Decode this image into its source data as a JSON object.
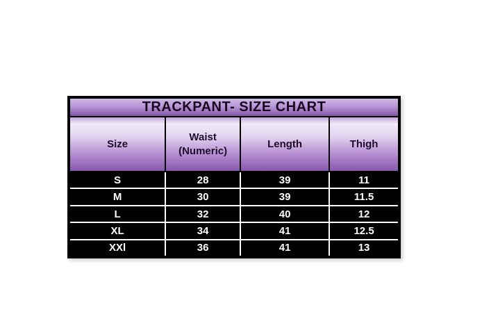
{
  "page": {
    "background": "#ffffff"
  },
  "chart_data": {
    "type": "table",
    "title": "TRACKPANT- SIZE CHART",
    "columns": [
      "Size",
      "Waist (Numeric)",
      "Length",
      "Thigh"
    ],
    "rows": [
      [
        "S",
        "28",
        "39",
        "11"
      ],
      [
        "M",
        "30",
        "39",
        "11.5"
      ],
      [
        "L",
        "32",
        "40",
        "12"
      ],
      [
        "XL",
        "34",
        "41",
        "12.5"
      ],
      [
        "XXl",
        "36",
        "41",
        "13"
      ]
    ]
  },
  "style": {
    "title_gradient_top": "#cfbae6",
    "title_gradient_bottom": "#7d4f9e",
    "header_gradient_highlight": "#f1eaf8",
    "header_gradient_dark": "#8758ab",
    "data_row_background": "#000000",
    "data_text_color": "#ffffff",
    "grid_line_color": "#ffffff",
    "border_color": "#000000"
  }
}
